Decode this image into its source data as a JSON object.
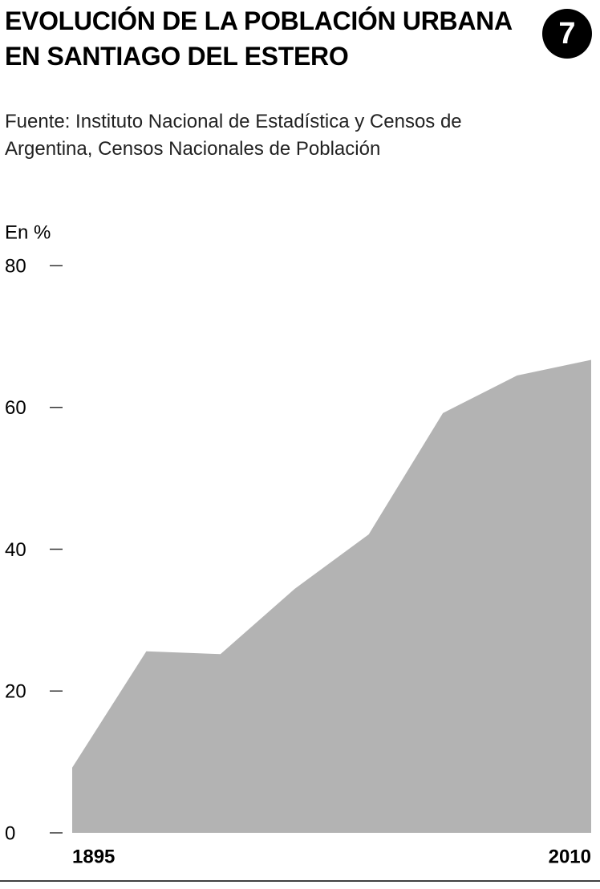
{
  "chart_data": {
    "type": "area",
    "title": "EVOLUCIÓN DE LA POBLACIÓN URBANA EN SANTIAGO DEL ESTERO",
    "subtitle": "Fuente: Instituto Nacional de Estadística y Censos de Argentina, Censos Nacionales de Población",
    "badge": "7",
    "y_label": "En %",
    "categories": [
      "1895",
      null,
      null,
      null,
      null,
      null,
      null,
      "2010"
    ],
    "values": [
      9.2,
      25.6,
      25.2,
      34.4,
      42.1,
      59.2,
      64.5,
      66.7
    ],
    "color": "#b3b3b3",
    "ylim": [
      0,
      80
    ],
    "yticks": [
      0,
      20,
      40,
      60,
      80
    ]
  }
}
